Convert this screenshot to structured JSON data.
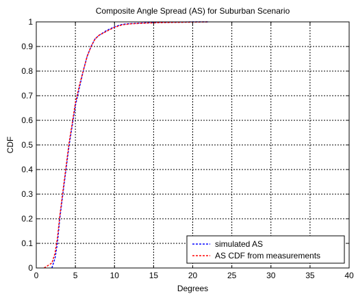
{
  "chart_data": {
    "type": "line",
    "title": "Composite Angle Spread (AS) for Suburban Scenario",
    "xlabel": "Degrees",
    "ylabel": "CDF",
    "xlim": [
      0,
      40
    ],
    "ylim": [
      0,
      1
    ],
    "xticks": [
      0,
      5,
      10,
      15,
      20,
      25,
      30,
      35,
      40
    ],
    "yticks": [
      0,
      0.1,
      0.2,
      0.3,
      0.4,
      0.5,
      0.6,
      0.7,
      0.8,
      0.9,
      1
    ],
    "xtick_labels": [
      "0",
      "5",
      "10",
      "15",
      "20",
      "25",
      "30",
      "35",
      "40"
    ],
    "ytick_labels": [
      "0",
      "0.1",
      "0.2",
      "0.3",
      "0.4",
      "0.5",
      "0.6",
      "0.7",
      "0.8",
      "0.9",
      "1"
    ],
    "grid": true,
    "legend_position": "bottom-right",
    "series": [
      {
        "name": "simulated AS",
        "color": "#0000ff",
        "style": "dashed",
        "x": [
          2.0,
          2.4,
          2.7,
          3.0,
          3.4,
          3.8,
          4.2,
          4.6,
          5.0,
          5.5,
          6.0,
          6.5,
          7.0,
          7.5,
          8.0,
          9.0,
          10.0,
          11.0,
          12.0,
          14.0,
          16.0,
          18.0,
          20.0,
          22.0
        ],
        "y": [
          0.0,
          0.04,
          0.1,
          0.2,
          0.3,
          0.4,
          0.5,
          0.58,
          0.66,
          0.73,
          0.8,
          0.86,
          0.9,
          0.93,
          0.945,
          0.965,
          0.98,
          0.99,
          0.993,
          0.996,
          0.998,
          0.999,
          1.0,
          1.0
        ]
      },
      {
        "name": "AS CDF from measurements",
        "color": "#ff0000",
        "style": "dashed",
        "x": [
          1.0,
          1.5,
          2.0,
          2.4,
          2.7,
          3.0,
          3.4,
          3.8,
          4.2,
          4.6,
          5.0,
          5.5,
          6.0,
          6.5,
          7.0,
          7.5,
          8.0,
          9.0,
          10.0,
          11.0,
          12.0,
          14.0,
          16.0,
          18.0,
          20.0,
          22.0
        ],
        "y": [
          0.0,
          0.01,
          0.02,
          0.06,
          0.12,
          0.21,
          0.31,
          0.41,
          0.51,
          0.59,
          0.67,
          0.74,
          0.8,
          0.86,
          0.9,
          0.93,
          0.945,
          0.962,
          0.978,
          0.988,
          0.992,
          0.995,
          0.997,
          0.998,
          0.999,
          1.0
        ]
      }
    ]
  }
}
